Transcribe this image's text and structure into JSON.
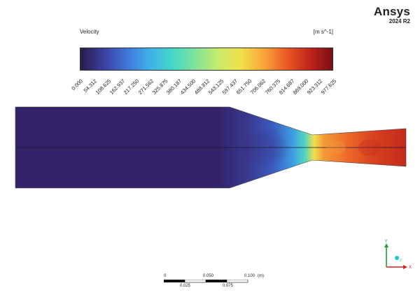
{
  "logo": {
    "brand": "Ansys",
    "version": "2024 R2"
  },
  "legend": {
    "title": "Velocity",
    "unit": "[m s^-1]",
    "ticks": [
      "0.000",
      "54.312",
      "108.625",
      "162.937",
      "217.250",
      "271.562",
      "325.875",
      "380.187",
      "434.500",
      "488.812",
      "543.125",
      "597.437",
      "651.750",
      "706.062",
      "760.375",
      "814.687",
      "869.000",
      "923.312",
      "977.625"
    ]
  },
  "colors": {
    "colormap": [
      "#2b1b4a",
      "#3a3f9e",
      "#3f74d8",
      "#3fb0e8",
      "#44d6c8",
      "#7fe39a",
      "#c6ec6b",
      "#f2e04a",
      "#f7a53a",
      "#ea5a22",
      "#c1241b",
      "#7a0f12"
    ],
    "axis_x": "#d22020",
    "axis_y": "#1f9d3a",
    "axis_z": "#22c0cf"
  },
  "scale": {
    "top_labels": [
      "0",
      "0.050",
      "0.100"
    ],
    "bottom_labels": [
      "0.025",
      "0.075"
    ],
    "unit": "(m)"
  },
  "triad": {
    "x": "X",
    "y": "Y",
    "z": "Z"
  }
}
